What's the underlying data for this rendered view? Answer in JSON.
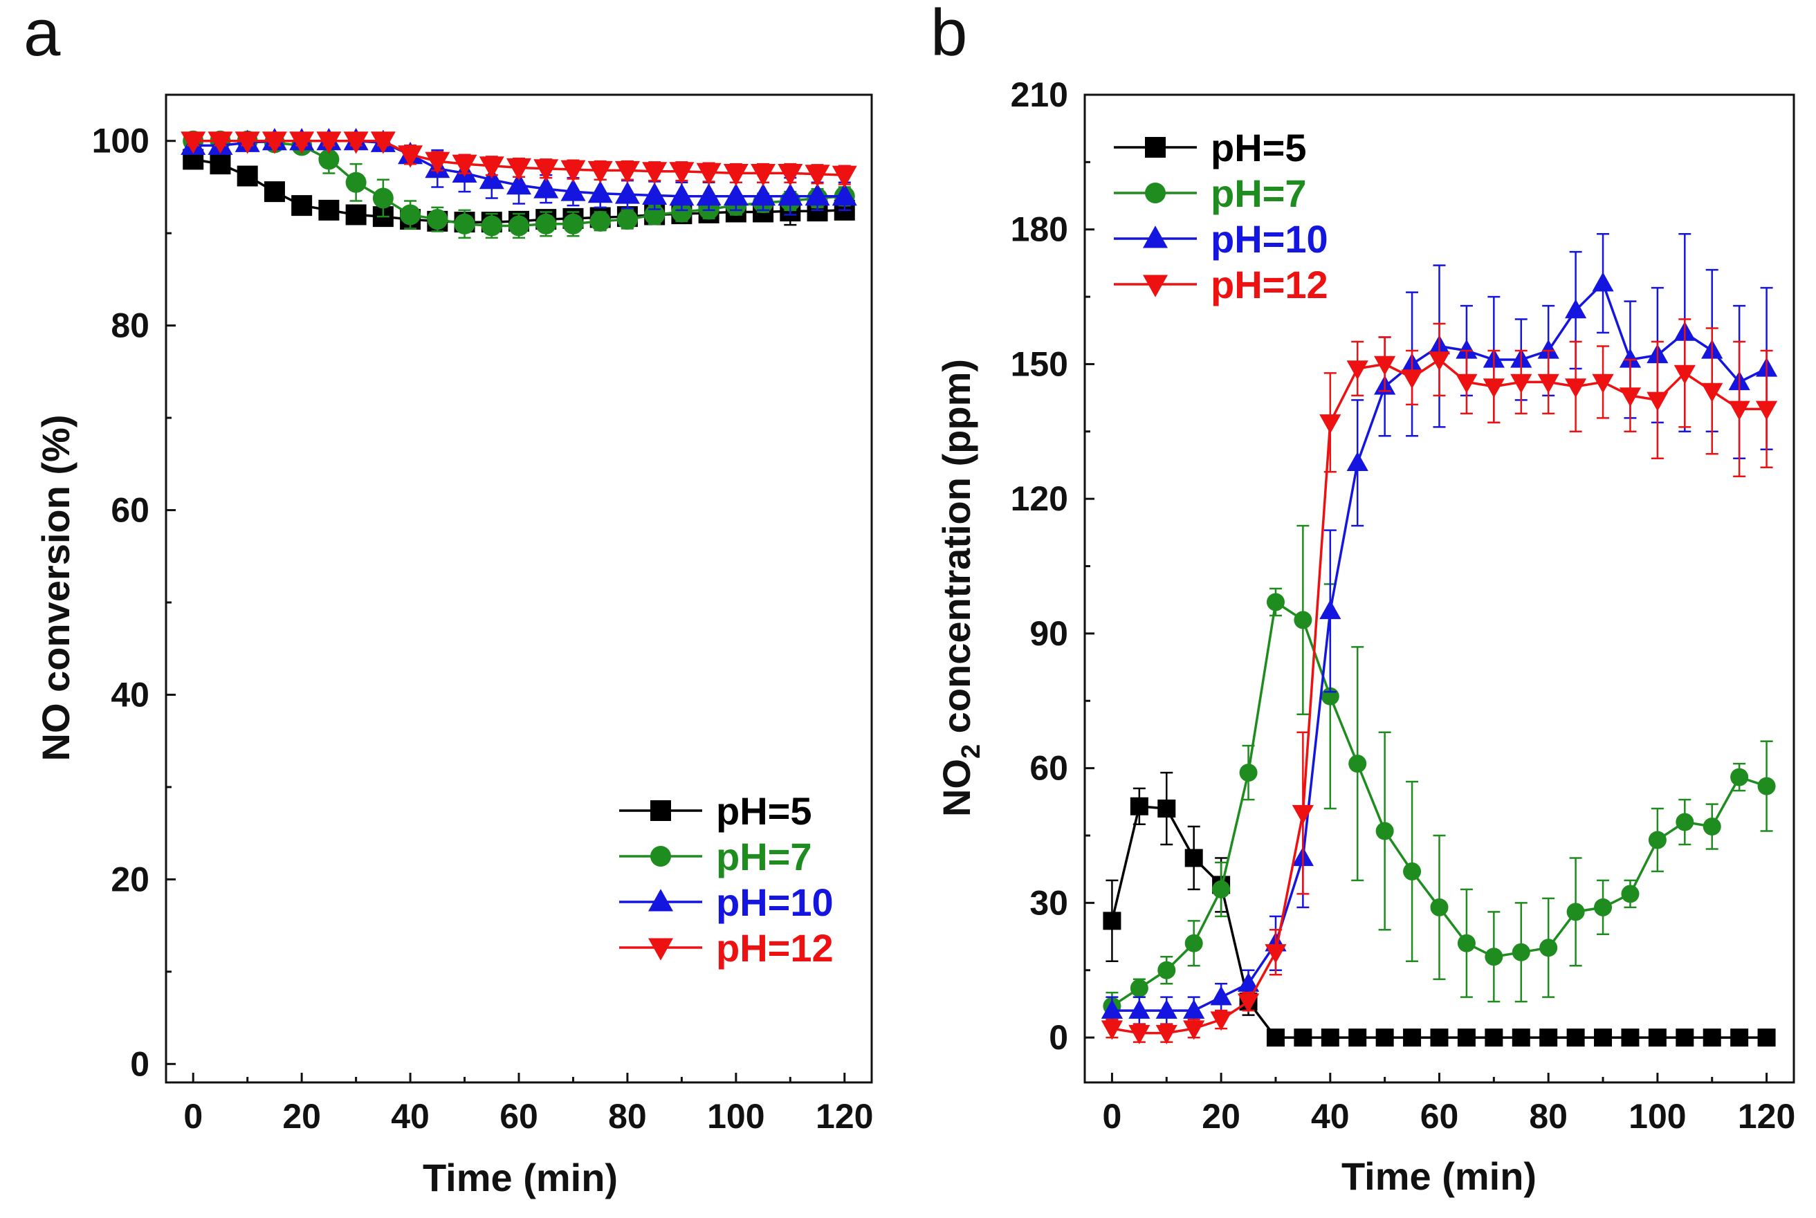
{
  "figure": {
    "panels": [
      {
        "label": "a",
        "type": "line",
        "xlabel": "Time (min)",
        "ylabel": "NO conversion (%)",
        "xlim": [
          -5,
          125
        ],
        "ylim": [
          -2,
          105
        ],
        "xticks": [
          0,
          20,
          40,
          60,
          80,
          100,
          120
        ],
        "yticks": [
          0,
          20,
          40,
          60,
          80,
          100
        ],
        "legend_position": "bottom-right",
        "grid": false
      },
      {
        "label": "b",
        "type": "line",
        "xlabel": "Time (min)",
        "ylabel_main": "NO",
        "ylabel_sub": "2",
        "ylabel_rest": " concentration (ppm)",
        "xlim": [
          -5,
          125
        ],
        "ylim": [
          -10,
          210
        ],
        "xticks": [
          0,
          20,
          40,
          60,
          80,
          100,
          120
        ],
        "yticks": [
          0,
          30,
          60,
          90,
          120,
          150,
          180,
          210
        ],
        "legend_position": "top-left",
        "grid": false
      }
    ]
  },
  "chart_data": [
    {
      "type": "line",
      "title": "",
      "xlabel": "Time (min)",
      "ylabel": "NO conversion (%)",
      "x": [
        0,
        5,
        10,
        15,
        20,
        25,
        30,
        35,
        40,
        45,
        50,
        55,
        60,
        65,
        70,
        75,
        80,
        85,
        90,
        95,
        100,
        105,
        110,
        115,
        120
      ],
      "series": [
        {
          "name": "pH=5",
          "color": "#000000",
          "marker": "square",
          "values": [
            98,
            97.5,
            96.2,
            94.5,
            93,
            92.5,
            92,
            91.8,
            91.5,
            91.3,
            91.2,
            91.2,
            91.3,
            91.5,
            91.6,
            91.7,
            91.8,
            92,
            92.1,
            92.2,
            92.3,
            92.3,
            92.4,
            92.4,
            92.5
          ],
          "errors": [
            1,
            0.8,
            0.8,
            0.8,
            0.8,
            0.8,
            0.8,
            0.8,
            1,
            0.8,
            0.8,
            0.8,
            0.8,
            0.8,
            0.8,
            0.8,
            0.8,
            0.8,
            0.8,
            0.8,
            0.8,
            0.8,
            1.5,
            1,
            0.8
          ]
        },
        {
          "name": "pH=7",
          "color": "#1e8c1e",
          "marker": "circle",
          "values": [
            100,
            100,
            100,
            99.8,
            99.5,
            98,
            95.5,
            93.8,
            92,
            91.5,
            91,
            90.8,
            90.8,
            91,
            91,
            91.3,
            91.5,
            92,
            92.3,
            92.6,
            93,
            93.3,
            93.5,
            93.8,
            94
          ],
          "errors": [
            0.5,
            0.5,
            0.5,
            0.5,
            0.5,
            1.5,
            2,
            2,
            1.5,
            1.3,
            1.5,
            1.3,
            1.3,
            1.3,
            1.3,
            1,
            1,
            1,
            1,
            1,
            1,
            1,
            1,
            1,
            1
          ]
        },
        {
          "name": "pH=10",
          "color": "#1515e0",
          "marker": "triangle-up",
          "values": [
            99.5,
            99.5,
            99.8,
            100,
            100,
            100,
            100,
            99.8,
            98.5,
            97,
            96.5,
            95.8,
            95.2,
            94.8,
            94.5,
            94.3,
            94.2,
            94.1,
            94,
            94,
            94,
            94,
            94,
            94,
            94
          ],
          "errors": [
            0.8,
            0.8,
            0.8,
            0.8,
            0.8,
            0.8,
            0.8,
            0.8,
            1,
            2,
            2,
            2,
            2,
            1.5,
            1.5,
            1.5,
            1.5,
            1.5,
            1.5,
            1.5,
            1.5,
            1.5,
            2,
            1.5,
            1.5
          ]
        },
        {
          "name": "pH=12",
          "color": "#ee1111",
          "marker": "triangle-down",
          "values": [
            100,
            100,
            100,
            100,
            100,
            100,
            100,
            100,
            98.5,
            97.8,
            97.5,
            97.3,
            97.1,
            97,
            96.9,
            96.8,
            96.8,
            96.7,
            96.7,
            96.6,
            96.5,
            96.5,
            96.5,
            96.4,
            96.3
          ],
          "errors": [
            0.5,
            0.5,
            0.5,
            0.5,
            0.5,
            0.5,
            0.5,
            0.5,
            1,
            1,
            1,
            1,
            1,
            1,
            1,
            1,
            1,
            1,
            1,
            1,
            1,
            1,
            1,
            1,
            1
          ]
        }
      ],
      "xlim": [
        -5,
        125
      ],
      "ylim": [
        -2,
        105
      ]
    },
    {
      "type": "line",
      "title": "",
      "xlabel": "Time (min)",
      "ylabel": "NO2 concentration (ppm)",
      "x": [
        0,
        5,
        10,
        15,
        20,
        25,
        30,
        35,
        40,
        45,
        50,
        55,
        60,
        65,
        70,
        75,
        80,
        85,
        90,
        95,
        100,
        105,
        110,
        115,
        120
      ],
      "series": [
        {
          "name": "pH=5",
          "color": "#000000",
          "marker": "square",
          "values": [
            26,
            51.5,
            51,
            40,
            34,
            8,
            0,
            0,
            0,
            0,
            0,
            0,
            0,
            0,
            0,
            0,
            0,
            0,
            0,
            0,
            0,
            0,
            0,
            0,
            0
          ],
          "errors": [
            9,
            4,
            8,
            7,
            6,
            3,
            0,
            0,
            0,
            0,
            0,
            0,
            0,
            0,
            0,
            0,
            0,
            0,
            0,
            0,
            0,
            0,
            0,
            0,
            0
          ]
        },
        {
          "name": "pH=7",
          "color": "#1e8c1e",
          "marker": "circle",
          "values": [
            7,
            11,
            15,
            21,
            33,
            59,
            97,
            93,
            76,
            61,
            46,
            37,
            29,
            21,
            18,
            19,
            20,
            28,
            29,
            32,
            44,
            48,
            47,
            58,
            56
          ],
          "errors": [
            3,
            2,
            3,
            5,
            6,
            6,
            3,
            21,
            25,
            26,
            22,
            20,
            16,
            12,
            10,
            11,
            11,
            12,
            6,
            3,
            7,
            5,
            5,
            3,
            10
          ]
        },
        {
          "name": "pH=10",
          "color": "#1515e0",
          "marker": "triangle-up",
          "values": [
            6,
            6,
            6,
            6,
            9,
            12,
            21,
            40,
            95,
            128,
            145,
            150,
            154,
            153,
            151,
            151,
            153,
            162,
            168,
            151,
            152,
            157,
            153,
            146,
            149
          ],
          "errors": [
            3,
            3,
            3,
            3,
            3,
            3,
            6,
            11,
            18,
            14,
            11,
            16,
            18,
            10,
            14,
            9,
            10,
            13,
            11,
            13,
            15,
            22,
            18,
            17,
            18
          ]
        },
        {
          "name": "pH=12",
          "color": "#ee1111",
          "marker": "triangle-down",
          "values": [
            2,
            1,
            1,
            2,
            4,
            8,
            19,
            50,
            137,
            149,
            150,
            147,
            151,
            146,
            145,
            146,
            146,
            145,
            146,
            143,
            142,
            148,
            144,
            140,
            140
          ],
          "errors": [
            2,
            2,
            2,
            2,
            2,
            2,
            5,
            18,
            11,
            6,
            6,
            6,
            8,
            7,
            8,
            7,
            7,
            10,
            8,
            8,
            13,
            12,
            14,
            15,
            13
          ]
        }
      ],
      "xlim": [
        -5,
        125
      ],
      "ylim": [
        -10,
        210
      ]
    }
  ]
}
